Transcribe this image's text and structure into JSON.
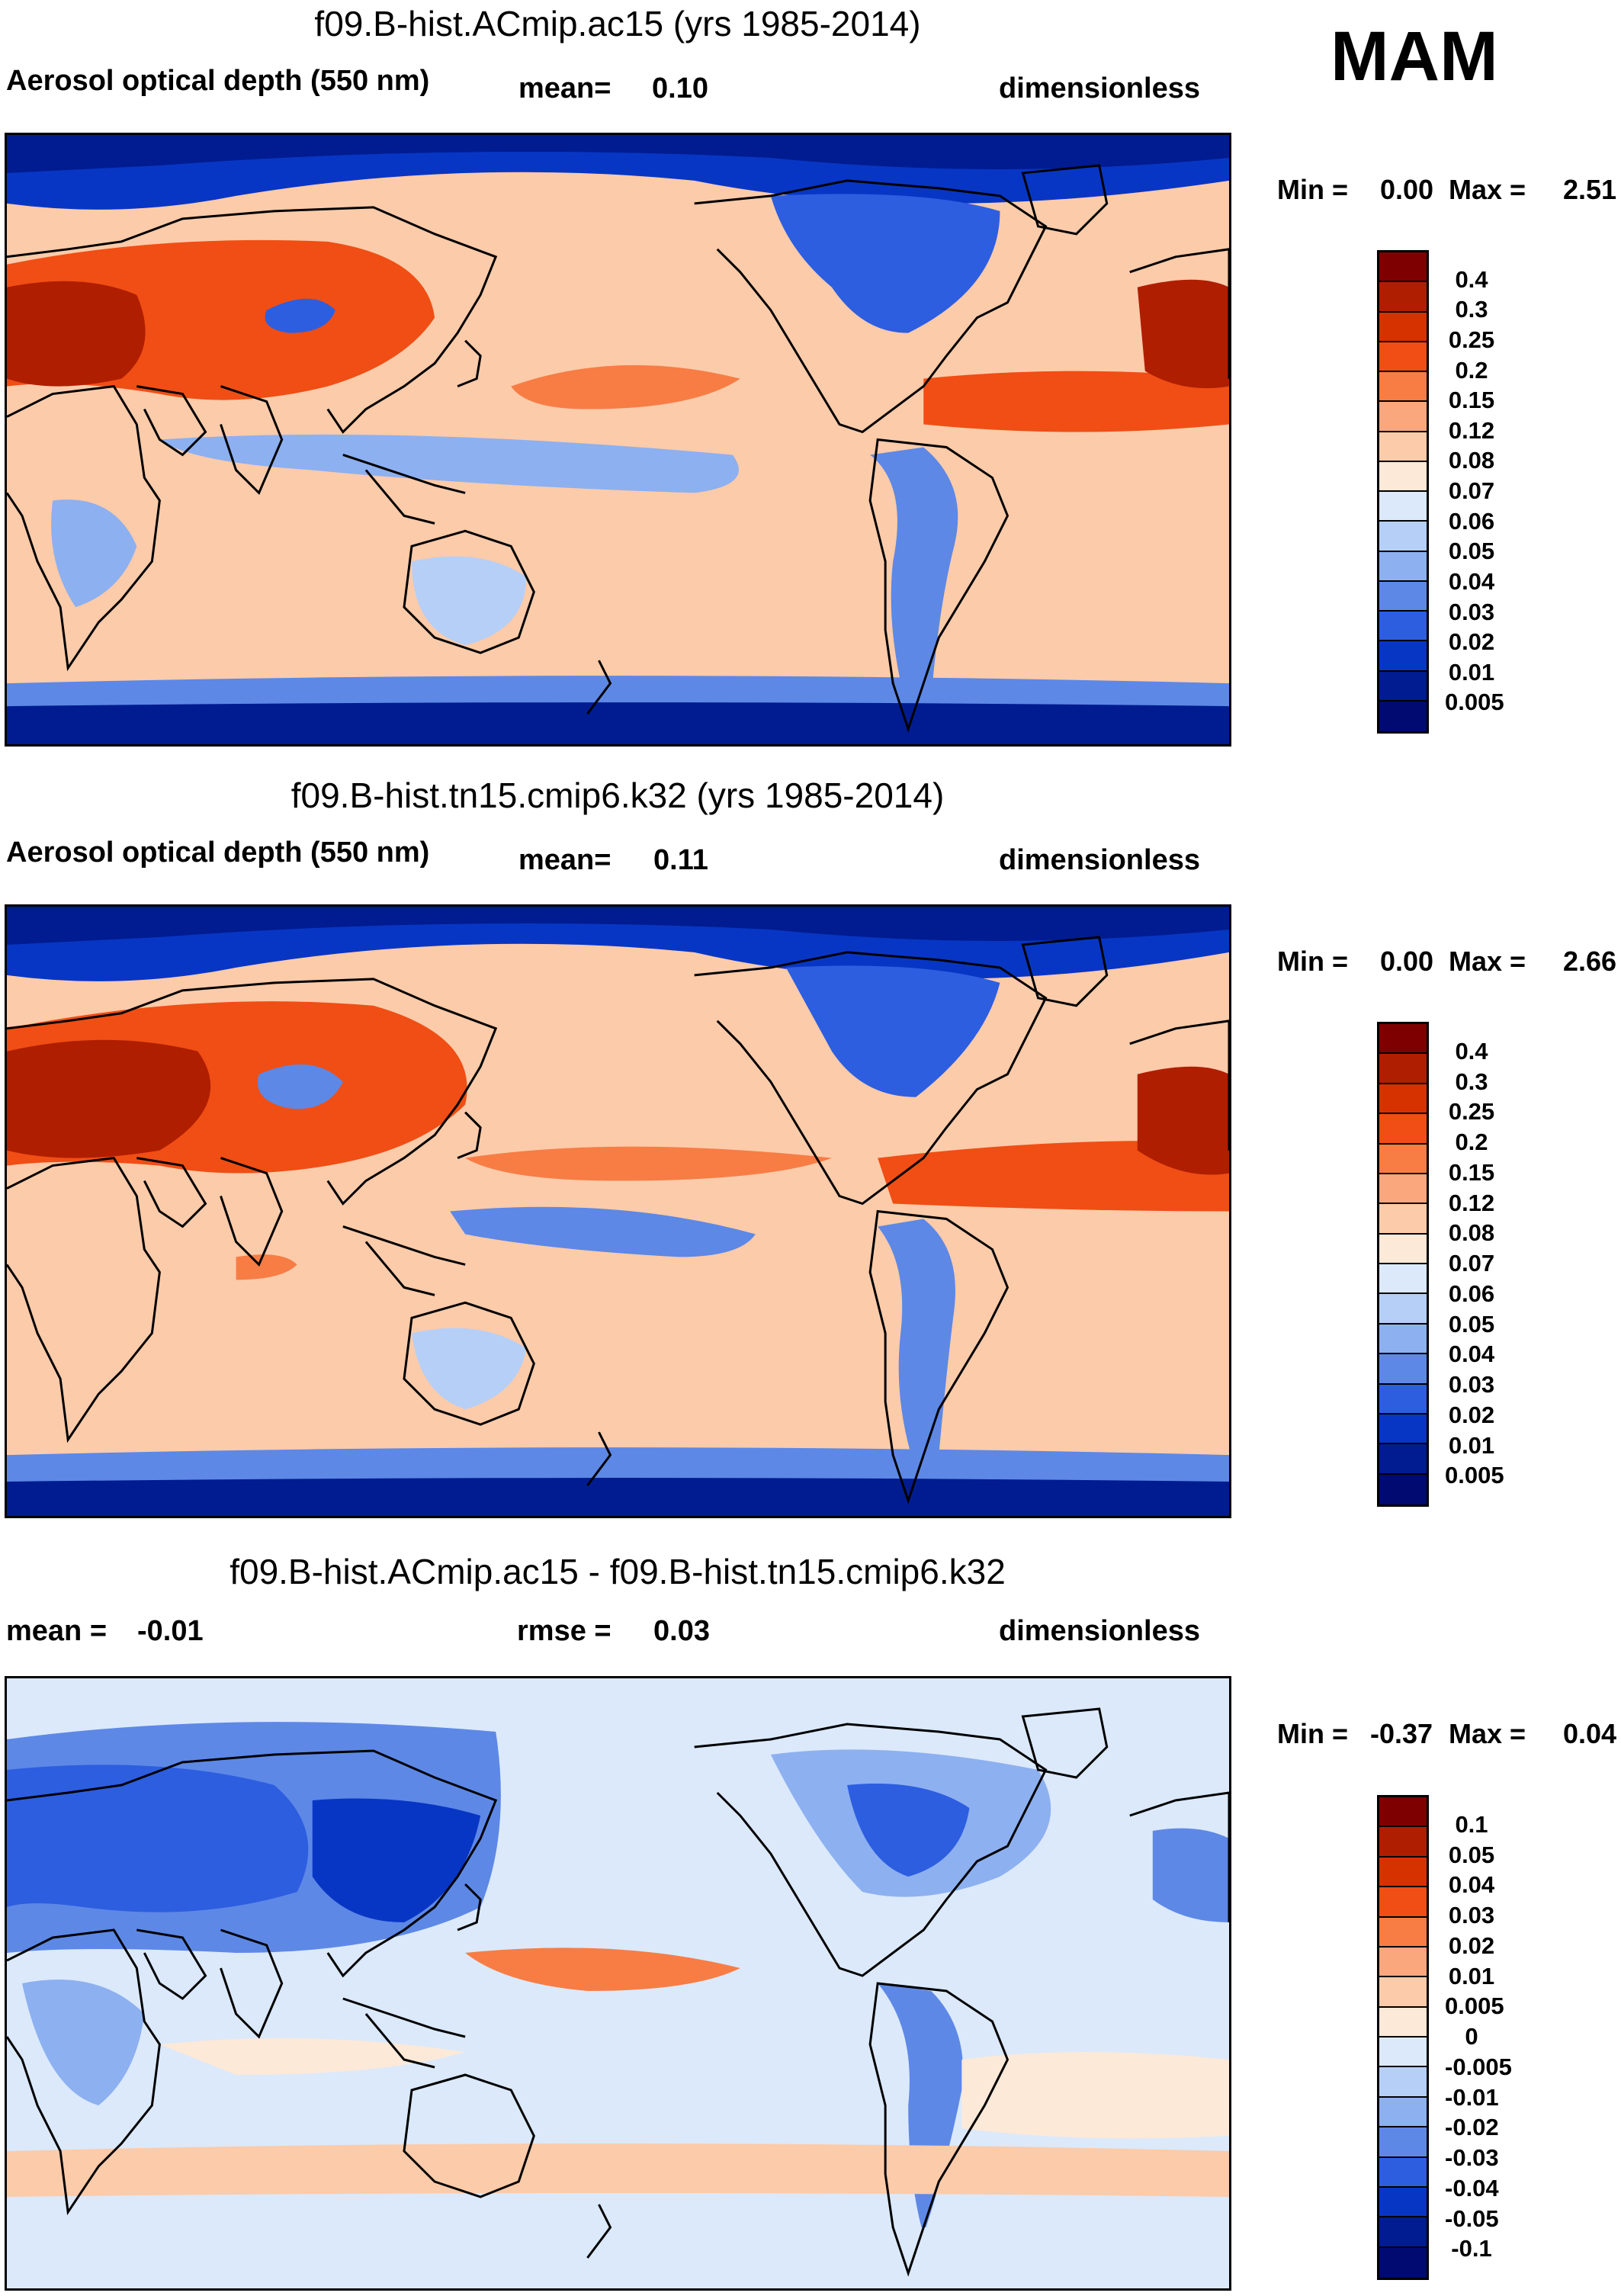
{
  "season": "MAM",
  "panels": [
    {
      "title": "f09.B-hist.ACmip.ac15 (yrs 1985-2014)",
      "left_label": "Aerosol optical depth (550 nm)",
      "mid_label": "mean=",
      "mid_value": "0.10",
      "right_label": "dimensionless",
      "min_label": "Min =",
      "min_value": "0.00",
      "max_label": "Max =",
      "max_value": "2.51"
    },
    {
      "title": "f09.B-hist.tn15.cmip6.k32 (yrs 1985-2014)",
      "left_label": "Aerosol optical depth (550 nm)",
      "mid_label": "mean=",
      "mid_value": "0.11",
      "right_label": "dimensionless",
      "min_label": "Min =",
      "min_value": "0.00",
      "max_label": "Max =",
      "max_value": "2.66"
    },
    {
      "title": "f09.B-hist.ACmip.ac15 - f09.B-hist.tn15.cmip6.k32",
      "left_label": "mean =",
      "left_value": "-0.01",
      "mid_label": "rmse =",
      "mid_value": "0.03",
      "right_label": "dimensionless",
      "min_label": "Min =",
      "min_value": "-0.37",
      "max_label": "Max =",
      "max_value": "0.04"
    }
  ],
  "colorbars": {
    "aod": {
      "labels": [
        "0.4",
        "0.3",
        "0.25",
        "0.2",
        "0.15",
        "0.12",
        "0.08",
        "0.07",
        "0.06",
        "0.05",
        "0.04",
        "0.03",
        "0.02",
        "0.01",
        "0.005"
      ],
      "colors": [
        "#7f0000",
        "#b01e00",
        "#d63200",
        "#f04e14",
        "#f77d45",
        "#fba77e",
        "#fccbaa",
        "#fde9d8",
        "#dbe9fb",
        "#b6cff7",
        "#8db0f0",
        "#5d88e6",
        "#2d5ee0",
        "#0836c4",
        "#001c90",
        "#000a70"
      ]
    },
    "diff": {
      "labels": [
        "0.1",
        "0.05",
        "0.04",
        "0.03",
        "0.02",
        "0.01",
        "0.005",
        "0",
        "-0.005",
        "-0.01",
        "-0.02",
        "-0.03",
        "-0.04",
        "-0.05",
        "-0.1"
      ],
      "colors": [
        "#7f0000",
        "#b01e00",
        "#d63200",
        "#f04e14",
        "#f77d45",
        "#fba77e",
        "#fccbaa",
        "#fde9d8",
        "#dbe9fb",
        "#b6cff7",
        "#8db0f0",
        "#5d88e6",
        "#2d5ee0",
        "#0836c4",
        "#001c90",
        "#000a70"
      ]
    }
  }
}
